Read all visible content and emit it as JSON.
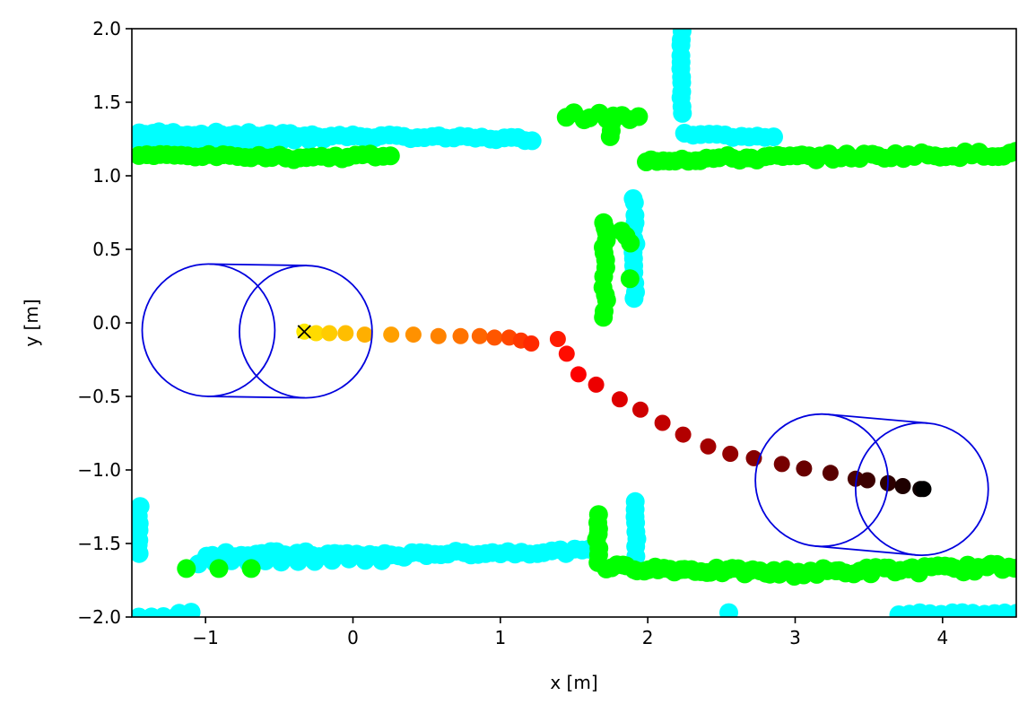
{
  "chart_data": {
    "type": "scatter",
    "title": "",
    "xlabel": "x [m]",
    "ylabel": "y [m]",
    "xlim": [
      -1.5,
      4.5
    ],
    "ylim": [
      -2.0,
      2.0
    ],
    "xticks": [
      -1,
      0,
      1,
      2,
      3,
      4
    ],
    "xtick_labels": [
      "−1",
      "0",
      "1",
      "2",
      "3",
      "4"
    ],
    "yticks": [
      -2.0,
      -1.5,
      -1.0,
      -0.5,
      0.0,
      0.5,
      1.0,
      1.5,
      2.0
    ],
    "ytick_labels": [
      "−2.0",
      "−1.5",
      "−1.0",
      "−0.5",
      "0.0",
      "0.5",
      "1.0",
      "1.5",
      "2.0"
    ],
    "grid": false,
    "legend": "none",
    "colors": {
      "scan_a": "#00ffff",
      "scan_b": "#00ff00",
      "footprint": "#0000dd",
      "start_marker": "#000000"
    },
    "start_marker": {
      "x": -0.33,
      "y": -0.06,
      "shape": "x"
    },
    "trajectory": {
      "colormap": "hot",
      "points": [
        [
          -0.33,
          -0.06
        ],
        [
          -0.25,
          -0.07
        ],
        [
          -0.16,
          -0.07
        ],
        [
          -0.05,
          -0.07
        ],
        [
          0.08,
          -0.08
        ],
        [
          0.26,
          -0.08
        ],
        [
          0.41,
          -0.08
        ],
        [
          0.58,
          -0.09
        ],
        [
          0.73,
          -0.09
        ],
        [
          0.86,
          -0.09
        ],
        [
          0.96,
          -0.1
        ],
        [
          1.06,
          -0.1
        ],
        [
          1.14,
          -0.12
        ],
        [
          1.21,
          -0.14
        ],
        [
          1.39,
          -0.11
        ],
        [
          1.45,
          -0.21
        ],
        [
          1.53,
          -0.35
        ],
        [
          1.65,
          -0.42
        ],
        [
          1.81,
          -0.52
        ],
        [
          1.95,
          -0.59
        ],
        [
          2.1,
          -0.68
        ],
        [
          2.24,
          -0.76
        ],
        [
          2.41,
          -0.84
        ],
        [
          2.56,
          -0.89
        ],
        [
          2.72,
          -0.92
        ],
        [
          2.91,
          -0.96
        ],
        [
          3.06,
          -0.99
        ],
        [
          3.24,
          -1.02
        ],
        [
          3.41,
          -1.06
        ],
        [
          3.49,
          -1.07
        ],
        [
          3.63,
          -1.09
        ],
        [
          3.73,
          -1.11
        ],
        [
          3.85,
          -1.13
        ],
        [
          3.87,
          -1.13
        ]
      ]
    },
    "footprints": [
      {
        "c1": [
          -0.98,
          -0.05
        ],
        "c2": [
          -0.32,
          -0.06
        ],
        "r": 0.45
      },
      {
        "c1": [
          3.18,
          -1.07
        ],
        "c2": [
          3.86,
          -1.13
        ],
        "r": 0.45
      }
    ],
    "scan_segments": [
      {
        "series": "scan_a",
        "from": [
          -1.45,
          1.29
        ],
        "to": [
          0.0,
          1.27
        ],
        "n": 32,
        "jitter": 0.015
      },
      {
        "series": "scan_a",
        "from": [
          0.0,
          1.27
        ],
        "to": [
          1.22,
          1.25
        ],
        "n": 26,
        "jitter": 0.012
      },
      {
        "series": "scan_a",
        "from": [
          -1.45,
          1.23
        ],
        "to": [
          -0.2,
          1.24
        ],
        "n": 14,
        "jitter": 0.01
      },
      {
        "series": "scan_a",
        "from": [
          2.23,
          1.98
        ],
        "to": [
          2.23,
          1.42
        ],
        "n": 12,
        "jitter": 0.012
      },
      {
        "series": "scan_a",
        "from": [
          2.25,
          1.28
        ],
        "to": [
          2.85,
          1.26
        ],
        "n": 12,
        "jitter": 0.01
      },
      {
        "series": "scan_a",
        "from": [
          1.91,
          0.85
        ],
        "to": [
          1.91,
          0.17
        ],
        "n": 14,
        "jitter": 0.02
      },
      {
        "series": "scan_a",
        "from": [
          -1.45,
          -1.25
        ],
        "to": [
          -1.45,
          -1.57
        ],
        "n": 7,
        "jitter": 0.015
      },
      {
        "series": "scan_a",
        "from": [
          -1.0,
          -1.57
        ],
        "to": [
          0.5,
          -1.58
        ],
        "n": 32,
        "jitter": 0.02
      },
      {
        "series": "scan_a",
        "from": [
          0.5,
          -1.57
        ],
        "to": [
          1.65,
          -1.55
        ],
        "n": 24,
        "jitter": 0.015
      },
      {
        "series": "scan_a",
        "from": [
          -1.05,
          -1.63
        ],
        "to": [
          0.2,
          -1.61
        ],
        "n": 12,
        "jitter": 0.01
      },
      {
        "series": "scan_a",
        "from": [
          1.92,
          -1.21
        ],
        "to": [
          1.92,
          -1.58
        ],
        "n": 8,
        "jitter": 0.015
      },
      {
        "series": "scan_a",
        "from": [
          3.7,
          -1.98
        ],
        "to": [
          4.5,
          -1.97
        ],
        "n": 12,
        "jitter": 0.01
      },
      {
        "series": "scan_a",
        "from": [
          -1.45,
          -2.0
        ],
        "to": [
          -1.2,
          -2.0
        ],
        "n": 4,
        "jitter": 0.005
      },
      {
        "series": "scan_a",
        "from": [
          -1.18,
          -1.97
        ],
        "to": [
          -1.1,
          -1.97
        ],
        "n": 2,
        "jitter": 0.005
      },
      {
        "series": "scan_a",
        "from": [
          2.55,
          -1.97
        ],
        "to": [
          2.55,
          -1.97
        ],
        "n": 1,
        "jitter": 0.0
      },
      {
        "series": "scan_b",
        "from": [
          -1.45,
          1.14
        ],
        "to": [
          -0.45,
          1.13
        ],
        "n": 22,
        "jitter": 0.01
      },
      {
        "series": "scan_b",
        "from": [
          -0.45,
          1.12
        ],
        "to": [
          0.25,
          1.14
        ],
        "n": 16,
        "jitter": 0.015
      },
      {
        "series": "scan_b",
        "from": [
          1.45,
          1.41
        ],
        "to": [
          1.93,
          1.39
        ],
        "n": 10,
        "jitter": 0.025
      },
      {
        "series": "scan_b",
        "from": [
          1.75,
          1.35
        ],
        "to": [
          1.75,
          1.26
        ],
        "n": 3,
        "jitter": 0.01
      },
      {
        "series": "scan_b",
        "from": [
          1.98,
          1.11
        ],
        "to": [
          4.5,
          1.15
        ],
        "n": 60,
        "jitter": 0.02
      },
      {
        "series": "scan_b",
        "from": [
          1.71,
          0.7
        ],
        "to": [
          1.71,
          0.05
        ],
        "n": 14,
        "jitter": 0.03
      },
      {
        "series": "scan_b",
        "from": [
          1.82,
          0.62
        ],
        "to": [
          1.88,
          0.55
        ],
        "n": 3,
        "jitter": 0.01
      },
      {
        "series": "scan_b",
        "from": [
          1.88,
          0.3
        ],
        "to": [
          1.88,
          0.3
        ],
        "n": 1,
        "jitter": 0.0
      },
      {
        "series": "scan_b",
        "from": [
          1.66,
          -1.3
        ],
        "to": [
          1.66,
          -1.62
        ],
        "n": 8,
        "jitter": 0.02
      },
      {
        "series": "scan_b",
        "from": [
          1.72,
          -1.66
        ],
        "to": [
          2.9,
          -1.7
        ],
        "n": 34,
        "jitter": 0.02
      },
      {
        "series": "scan_b",
        "from": [
          2.9,
          -1.7
        ],
        "to": [
          4.5,
          -1.66
        ],
        "n": 40,
        "jitter": 0.025
      },
      {
        "series": "scan_b",
        "from": [
          -1.13,
          -1.67
        ],
        "to": [
          -0.69,
          -1.67
        ],
        "n": 3,
        "jitter": 0.0
      }
    ]
  }
}
